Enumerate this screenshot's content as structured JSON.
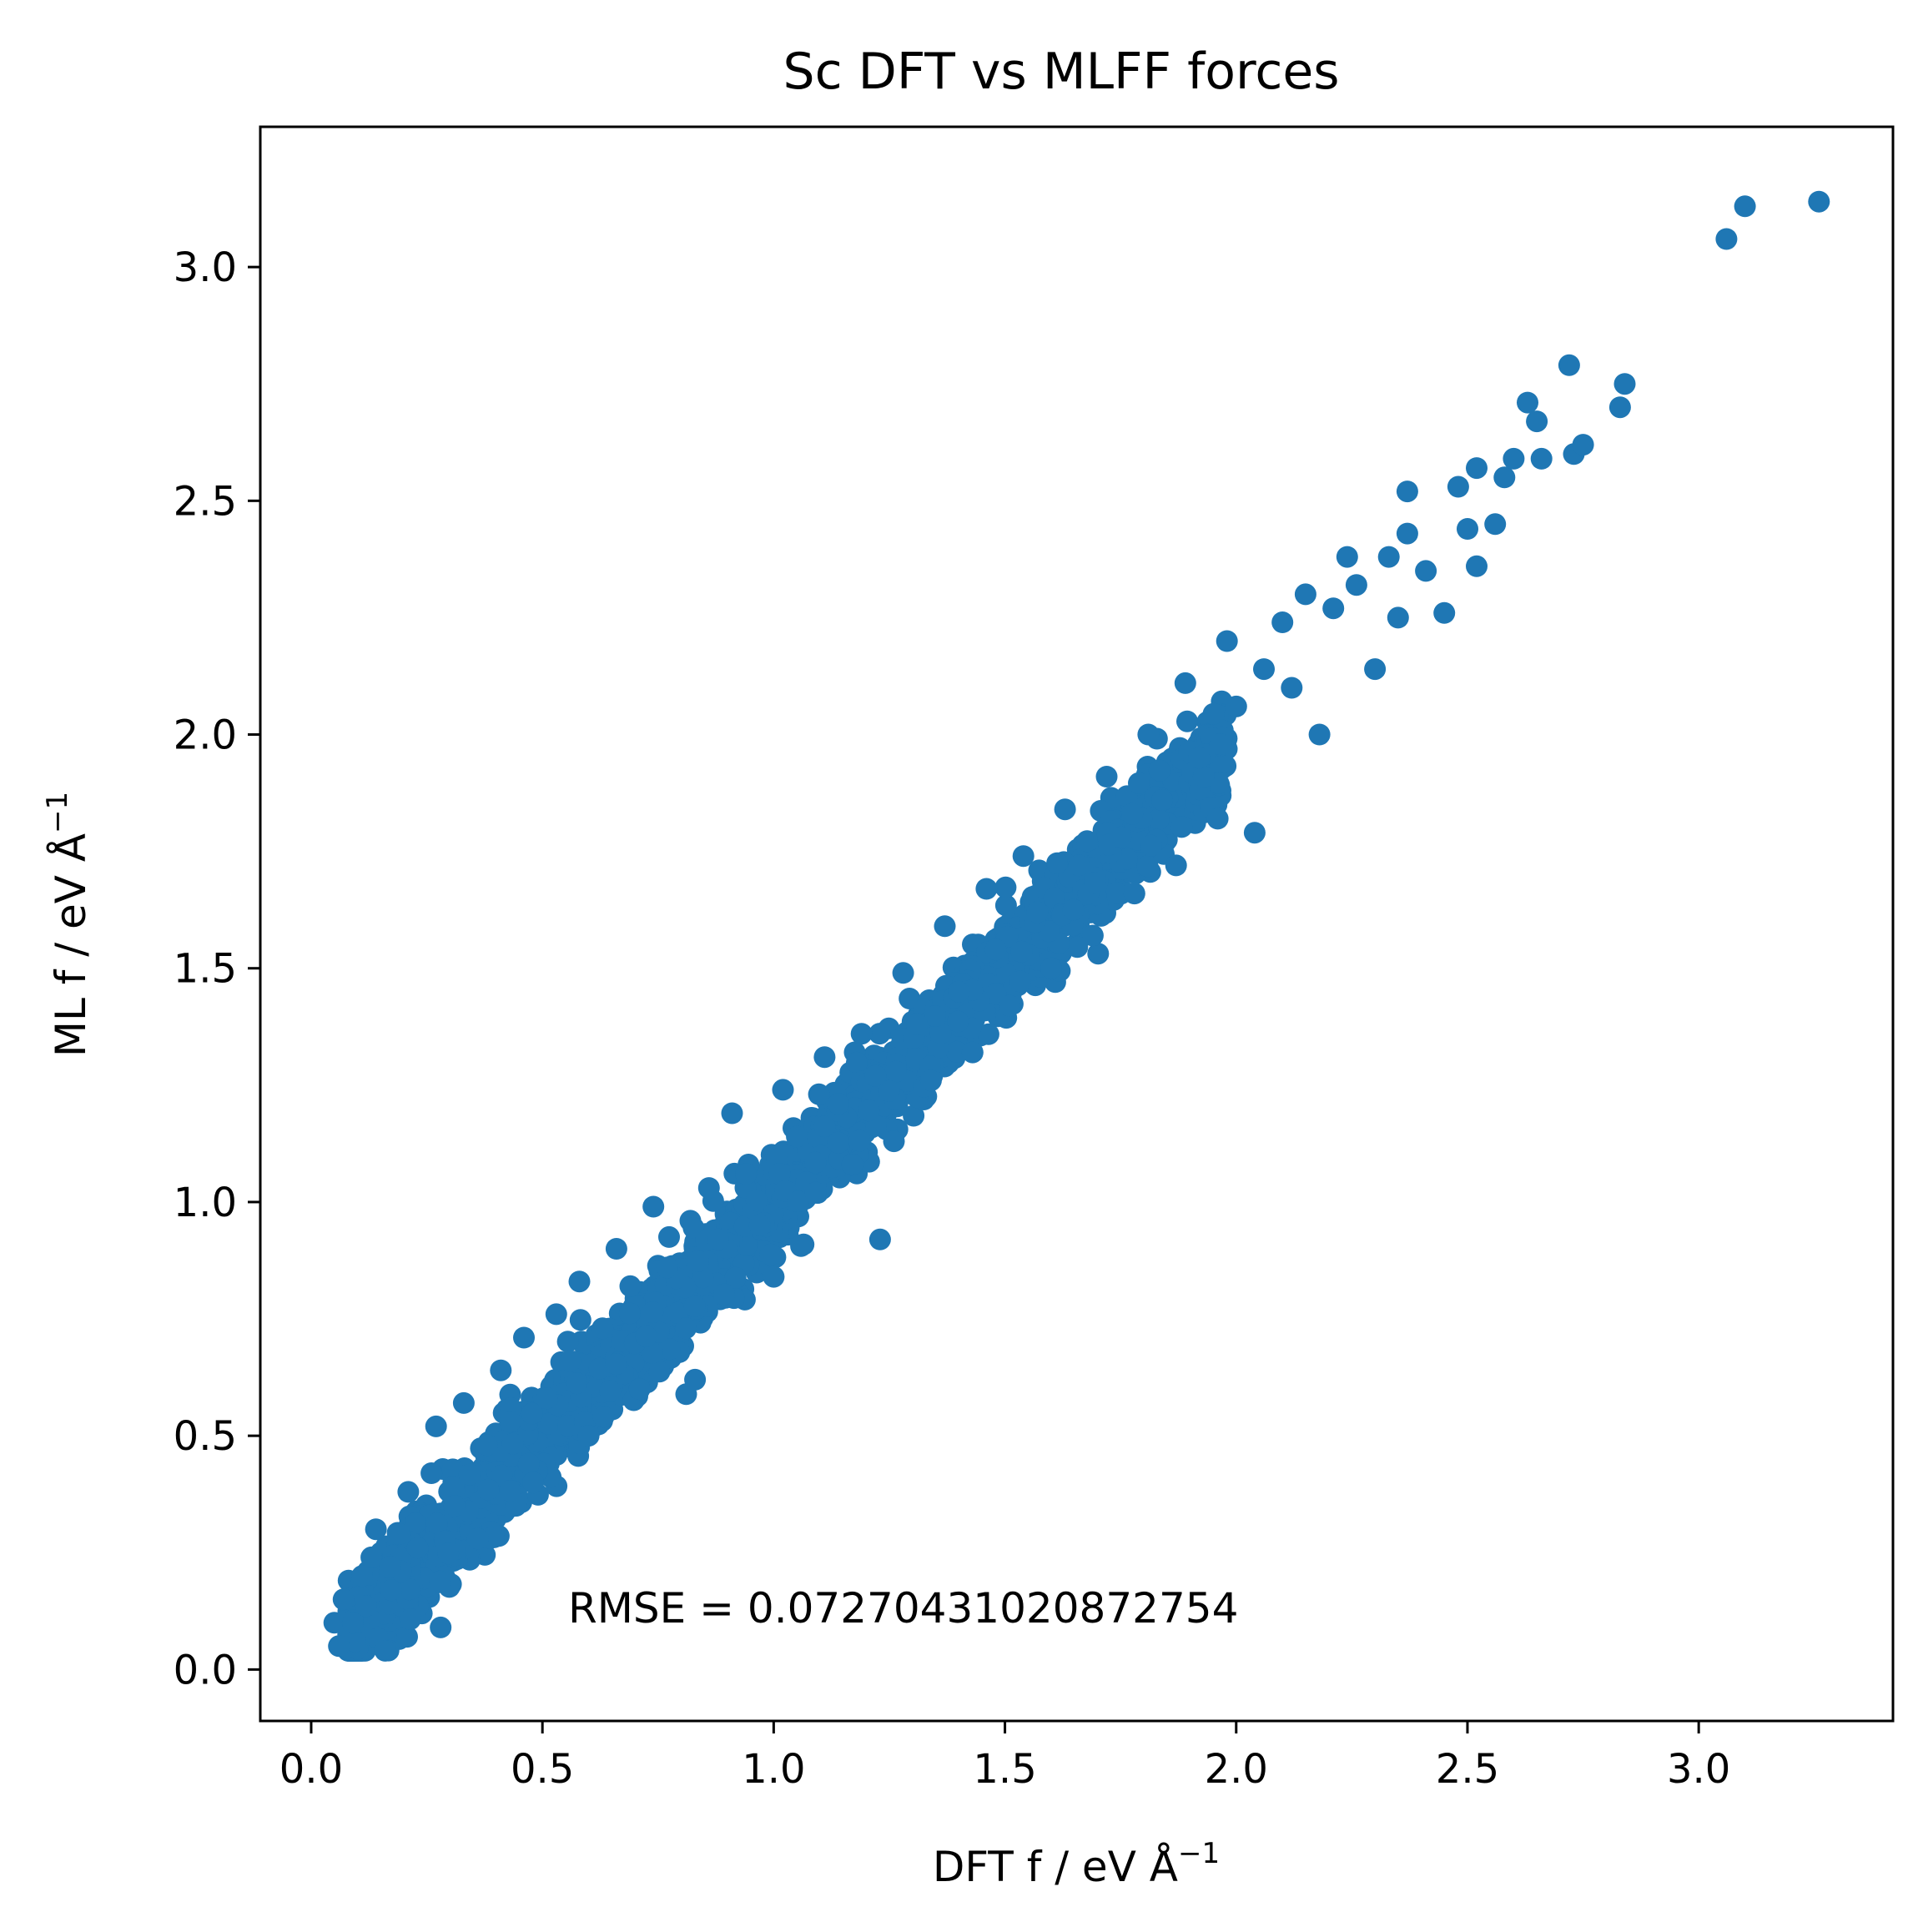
{
  "chart_data": {
    "type": "scatter",
    "title": "Sc DFT vs MLFF forces",
    "xlabel": "DFT f / eV Å",
    "ylabel": "ML f / eV Å",
    "axis_unit_exponent": "−1",
    "annotation": "RMSE = 0.07270431020872754",
    "xlim": [
      -0.11,
      3.42
    ],
    "ylim": [
      -0.11,
      3.3
    ],
    "xticks": [
      "0.0",
      "0.5",
      "1.0",
      "1.5",
      "2.0",
      "2.5",
      "3.0"
    ],
    "yticks": [
      "0.0",
      "0.5",
      "1.0",
      "1.5",
      "2.0",
      "2.5",
      "3.0"
    ],
    "grid": false,
    "legend": false,
    "color": "#1f77b4",
    "series": [
      {
        "values": [
          [
            0.05,
            0.1
          ],
          [
            0.06,
            0.05
          ],
          [
            0.07,
            0.15
          ],
          [
            0.09,
            0.1
          ],
          [
            0.11,
            0.2
          ],
          [
            0.13,
            0.24
          ],
          [
            0.14,
            0.3
          ],
          [
            0.16,
            0.04
          ],
          [
            0.17,
            0.22
          ],
          [
            0.19,
            0.29
          ],
          [
            0.21,
            0.38
          ],
          [
            0.23,
            0.26
          ],
          [
            0.26,
            0.42
          ],
          [
            0.28,
            0.09
          ],
          [
            0.27,
            0.52
          ],
          [
            0.31,
            0.35
          ],
          [
            0.33,
            0.57
          ],
          [
            0.36,
            0.28
          ],
          [
            0.38,
            0.48
          ],
          [
            0.41,
            0.64
          ],
          [
            0.43,
            0.53
          ],
          [
            0.46,
            0.71
          ],
          [
            0.48,
            0.4
          ],
          [
            0.51,
            0.58
          ],
          [
            0.53,
            0.76
          ],
          [
            0.56,
            0.66
          ],
          [
            0.58,
            0.83
          ],
          [
            0.6,
            0.5
          ],
          [
            0.63,
            0.73
          ],
          [
            0.66,
            0.9
          ],
          [
            0.69,
            0.82
          ],
          [
            0.71,
            0.6
          ],
          [
            0.74,
            0.99
          ],
          [
            0.77,
            0.86
          ],
          [
            0.81,
            0.73
          ],
          [
            0.83,
            0.62
          ],
          [
            0.86,
            1.03
          ],
          [
            0.88,
            0.92
          ],
          [
            0.91,
            1.19
          ],
          [
            0.94,
            1.06
          ],
          [
            0.97,
            0.95
          ],
          [
            1.0,
            0.84
          ],
          [
            1.02,
            1.24
          ],
          [
            1.05,
            1.14
          ],
          [
            1.09,
            1.02
          ],
          [
            1.11,
            1.31
          ],
          [
            1.14,
            1.21
          ],
          [
            1.17,
            1.08
          ],
          [
            1.19,
            1.36
          ],
          [
            1.22,
            1.27
          ],
          [
            1.23,
            0.92
          ],
          [
            1.26,
            1.13
          ],
          [
            1.28,
            1.49
          ],
          [
            1.31,
            1.38
          ],
          [
            1.34,
            1.26
          ],
          [
            1.37,
            1.59
          ],
          [
            1.4,
            1.45
          ],
          [
            1.43,
            1.32
          ],
          [
            1.46,
            1.67
          ],
          [
            1.48,
            1.54
          ],
          [
            1.51,
            1.42
          ],
          [
            1.54,
            1.74
          ],
          [
            1.57,
            1.62
          ],
          [
            1.6,
            1.5
          ],
          [
            1.63,
            1.84
          ],
          [
            1.66,
            1.72
          ],
          [
            1.69,
            1.57
          ],
          [
            1.72,
            1.91
          ],
          [
            1.75,
            1.78
          ],
          [
            1.78,
            1.66
          ],
          [
            1.81,
            2.0
          ],
          [
            1.84,
            1.86
          ],
          [
            1.87,
            1.72
          ],
          [
            1.89,
            2.11
          ],
          [
            1.92,
            1.95
          ],
          [
            1.96,
            1.82
          ],
          [
            1.98,
            2.2
          ],
          [
            2.0,
            2.06
          ],
          [
            2.04,
            1.79
          ],
          [
            2.06,
            2.14
          ],
          [
            2.1,
            2.24
          ],
          [
            2.12,
            2.1
          ],
          [
            2.15,
            2.3
          ],
          [
            2.18,
            2.0
          ],
          [
            2.21,
            2.27
          ],
          [
            2.24,
            2.38
          ],
          [
            2.26,
            2.32
          ],
          [
            2.3,
            2.14
          ],
          [
            2.33,
            2.38
          ],
          [
            2.35,
            2.25
          ],
          [
            2.37,
            2.52
          ],
          [
            2.37,
            2.43
          ],
          [
            2.41,
            2.35
          ],
          [
            2.45,
            2.26
          ],
          [
            2.48,
            2.53
          ],
          [
            2.5,
            2.44
          ],
          [
            2.52,
            2.57
          ],
          [
            2.52,
            2.36
          ],
          [
            2.56,
            2.45
          ],
          [
            2.58,
            2.55
          ],
          [
            2.6,
            2.59
          ],
          [
            2.63,
            2.71
          ],
          [
            2.65,
            2.67
          ],
          [
            2.66,
            2.59
          ],
          [
            2.72,
            2.79
          ],
          [
            2.73,
            2.6
          ],
          [
            2.75,
            2.62
          ],
          [
            2.83,
            2.7
          ],
          [
            2.84,
            2.75
          ],
          [
            3.06,
            3.06
          ],
          [
            3.1,
            3.13
          ],
          [
            3.26,
            3.14
          ]
        ]
      }
    ]
  }
}
